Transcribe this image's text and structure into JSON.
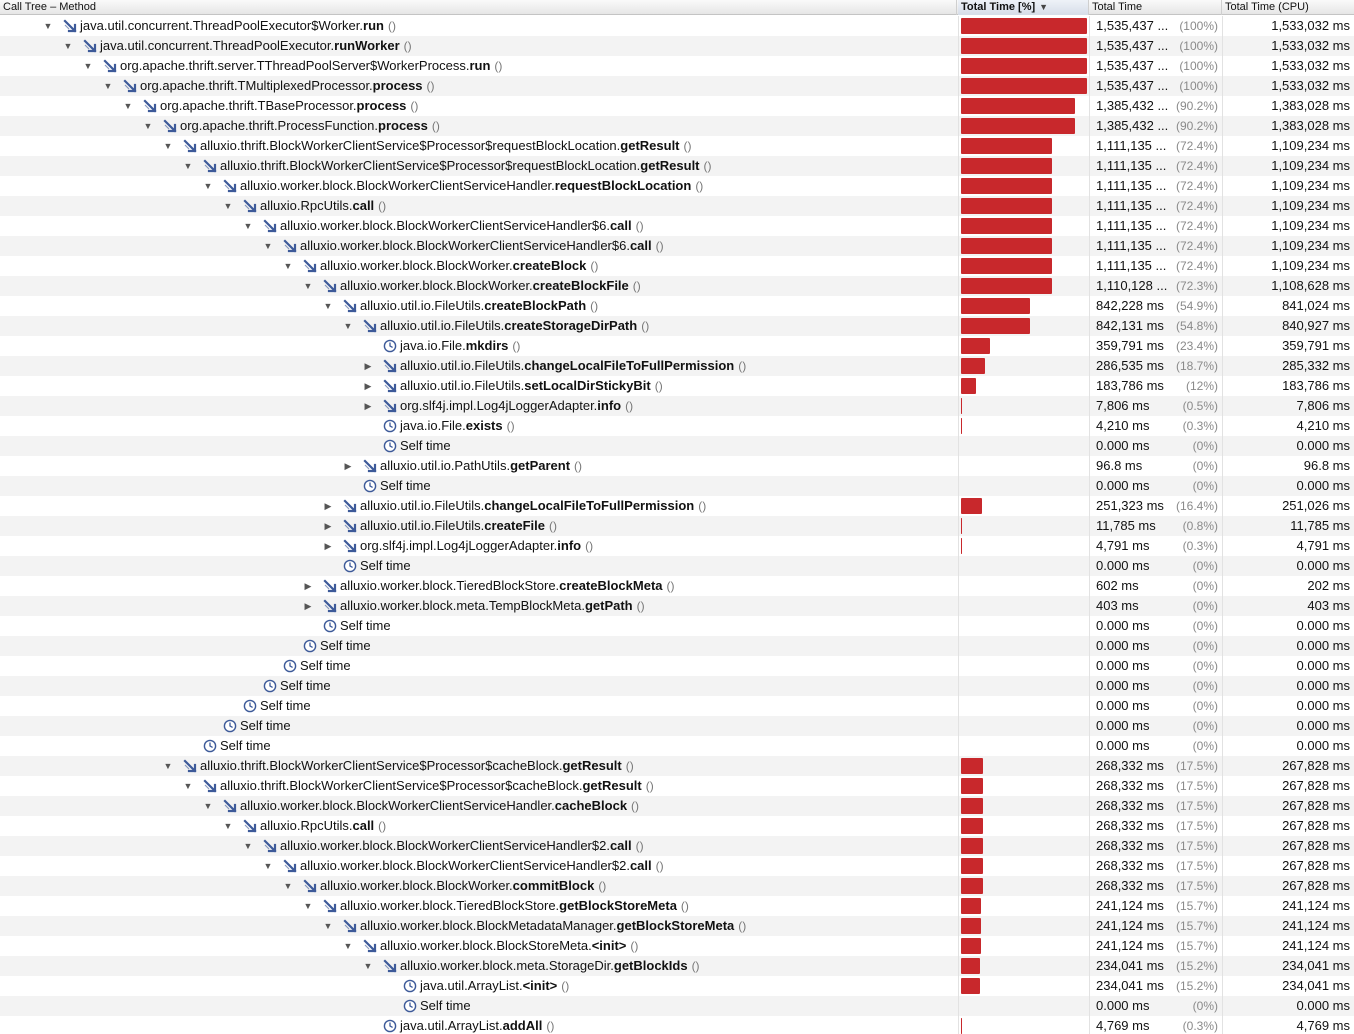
{
  "header": {
    "method": "Call Tree – Method",
    "total_pct": "Total Time [%]",
    "total": "Total Time",
    "cpu": "Total Time (CPU)"
  },
  "rows": [
    {
      "depth": 0,
      "disc": "open",
      "icon": "method",
      "pkg": "java.util.concurrent.ThreadPoolExecutor$Worker.",
      "meth": "run",
      "pct": 100,
      "total": "1,535,437 ...",
      "pcttext": "(100%)",
      "cpu": "1,533,032 ms"
    },
    {
      "depth": 1,
      "disc": "open",
      "icon": "method",
      "pkg": "java.util.concurrent.ThreadPoolExecutor.",
      "meth": "runWorker",
      "pct": 100,
      "total": "1,535,437 ...",
      "pcttext": "(100%)",
      "cpu": "1,533,032 ms"
    },
    {
      "depth": 2,
      "disc": "open",
      "icon": "method",
      "pkg": "org.apache.thrift.server.TThreadPoolServer$WorkerProcess.",
      "meth": "run",
      "pct": 100,
      "total": "1,535,437 ...",
      "pcttext": "(100%)",
      "cpu": "1,533,032 ms"
    },
    {
      "depth": 3,
      "disc": "open",
      "icon": "method",
      "pkg": "org.apache.thrift.TMultiplexedProcessor.",
      "meth": "process",
      "pct": 100,
      "total": "1,535,437 ...",
      "pcttext": "(100%)",
      "cpu": "1,533,032 ms"
    },
    {
      "depth": 4,
      "disc": "open",
      "icon": "method",
      "pkg": "org.apache.thrift.TBaseProcessor.",
      "meth": "process",
      "pct": 90.2,
      "total": "1,385,432 ...",
      "pcttext": "(90.2%)",
      "cpu": "1,383,028 ms"
    },
    {
      "depth": 5,
      "disc": "open",
      "icon": "method",
      "pkg": "org.apache.thrift.ProcessFunction.",
      "meth": "process",
      "pct": 90.2,
      "total": "1,385,432 ...",
      "pcttext": "(90.2%)",
      "cpu": "1,383,028 ms"
    },
    {
      "depth": 6,
      "disc": "open",
      "icon": "method",
      "pkg": "alluxio.thrift.BlockWorkerClientService$Processor$requestBlockLocation.",
      "meth": "getResult",
      "pct": 72.4,
      "total": "1,111,135 ...",
      "pcttext": "(72.4%)",
      "cpu": "1,109,234 ms"
    },
    {
      "depth": 7,
      "disc": "open",
      "icon": "method",
      "pkg": "alluxio.thrift.BlockWorkerClientService$Processor$requestBlockLocation.",
      "meth": "getResult",
      "pct": 72.4,
      "total": "1,111,135 ...",
      "pcttext": "(72.4%)",
      "cpu": "1,109,234 ms"
    },
    {
      "depth": 8,
      "disc": "open",
      "icon": "method",
      "pkg": "alluxio.worker.block.BlockWorkerClientServiceHandler.",
      "meth": "requestBlockLocation",
      "pct": 72.4,
      "total": "1,111,135 ...",
      "pcttext": "(72.4%)",
      "cpu": "1,109,234 ms"
    },
    {
      "depth": 9,
      "disc": "open",
      "icon": "method",
      "pkg": "alluxio.RpcUtils.",
      "meth": "call",
      "pct": 72.4,
      "total": "1,111,135 ...",
      "pcttext": "(72.4%)",
      "cpu": "1,109,234 ms"
    },
    {
      "depth": 10,
      "disc": "open",
      "icon": "method",
      "pkg": "alluxio.worker.block.BlockWorkerClientServiceHandler$6.",
      "meth": "call",
      "pct": 72.4,
      "total": "1,111,135 ...",
      "pcttext": "(72.4%)",
      "cpu": "1,109,234 ms"
    },
    {
      "depth": 11,
      "disc": "open",
      "icon": "method",
      "pkg": "alluxio.worker.block.BlockWorkerClientServiceHandler$6.",
      "meth": "call",
      "pct": 72.4,
      "total": "1,111,135 ...",
      "pcttext": "(72.4%)",
      "cpu": "1,109,234 ms"
    },
    {
      "depth": 12,
      "disc": "open",
      "icon": "method",
      "pkg": "alluxio.worker.block.BlockWorker.",
      "meth": "createBlock",
      "pct": 72.4,
      "total": "1,111,135 ...",
      "pcttext": "(72.4%)",
      "cpu": "1,109,234 ms"
    },
    {
      "depth": 13,
      "disc": "open",
      "icon": "method",
      "pkg": "alluxio.worker.block.BlockWorker.",
      "meth": "createBlockFile",
      "pct": 72.3,
      "total": "1,110,128 ...",
      "pcttext": "(72.3%)",
      "cpu": "1,108,628 ms"
    },
    {
      "depth": 14,
      "disc": "open",
      "icon": "method",
      "pkg": "alluxio.util.io.FileUtils.",
      "meth": "createBlockPath",
      "pct": 54.9,
      "total": "842,228 ms",
      "pcttext": "(54.9%)",
      "cpu": "841,024 ms"
    },
    {
      "depth": 15,
      "disc": "open",
      "icon": "method",
      "pkg": "alluxio.util.io.FileUtils.",
      "meth": "createStorageDirPath",
      "pct": 54.8,
      "total": "842,131 ms",
      "pcttext": "(54.8%)",
      "cpu": "840,927 ms"
    },
    {
      "depth": 16,
      "disc": "none",
      "icon": "clock",
      "pkg": "java.io.File.",
      "meth": "mkdirs",
      "pct": 23.4,
      "total": "359,791 ms",
      "pcttext": "(23.4%)",
      "cpu": "359,791 ms"
    },
    {
      "depth": 16,
      "disc": "closed",
      "icon": "method",
      "pkg": "alluxio.util.io.FileUtils.",
      "meth": "changeLocalFileToFullPermission",
      "pct": 18.7,
      "total": "286,535 ms",
      "pcttext": "(18.7%)",
      "cpu": "285,332 ms"
    },
    {
      "depth": 16,
      "disc": "closed",
      "icon": "method",
      "pkg": "alluxio.util.io.FileUtils.",
      "meth": "setLocalDirStickyBit",
      "pct": 12,
      "total": "183,786 ms",
      "pcttext": "(12%)",
      "cpu": "183,786 ms"
    },
    {
      "depth": 16,
      "disc": "closed",
      "icon": "method",
      "pkg": "org.slf4j.impl.Log4jLoggerAdapter.",
      "meth": "info",
      "pct": 0.5,
      "total": "7,806 ms",
      "pcttext": "(0.5%)",
      "cpu": "7,806 ms"
    },
    {
      "depth": 16,
      "disc": "none",
      "icon": "clock",
      "pkg": "java.io.File.",
      "meth": "exists",
      "pct": 0.3,
      "total": "4,210 ms",
      "pcttext": "(0.3%)",
      "cpu": "4,210 ms"
    },
    {
      "depth": 16,
      "disc": "none",
      "icon": "clock",
      "pkg": "Self time",
      "meth": "",
      "pct": 0,
      "total": "0.000 ms",
      "pcttext": "(0%)",
      "cpu": "0.000 ms"
    },
    {
      "depth": 15,
      "disc": "closed",
      "icon": "method",
      "pkg": "alluxio.util.io.PathUtils.",
      "meth": "getParent",
      "pct": 0,
      "total": "96.8 ms",
      "pcttext": "(0%)",
      "cpu": "96.8 ms"
    },
    {
      "depth": 15,
      "disc": "none",
      "icon": "clock",
      "pkg": "Self time",
      "meth": "",
      "pct": 0,
      "total": "0.000 ms",
      "pcttext": "(0%)",
      "cpu": "0.000 ms"
    },
    {
      "depth": 14,
      "disc": "closed",
      "icon": "method",
      "pkg": "alluxio.util.io.FileUtils.",
      "meth": "changeLocalFileToFullPermission",
      "pct": 16.4,
      "total": "251,323 ms",
      "pcttext": "(16.4%)",
      "cpu": "251,026 ms"
    },
    {
      "depth": 14,
      "disc": "closed",
      "icon": "method",
      "pkg": "alluxio.util.io.FileUtils.",
      "meth": "createFile",
      "pct": 0.8,
      "total": "11,785 ms",
      "pcttext": "(0.8%)",
      "cpu": "11,785 ms"
    },
    {
      "depth": 14,
      "disc": "closed",
      "icon": "method",
      "pkg": "org.slf4j.impl.Log4jLoggerAdapter.",
      "meth": "info",
      "pct": 0.3,
      "total": "4,791 ms",
      "pcttext": "(0.3%)",
      "cpu": "4,791 ms"
    },
    {
      "depth": 14,
      "disc": "none",
      "icon": "clock",
      "pkg": "Self time",
      "meth": "",
      "pct": 0,
      "total": "0.000 ms",
      "pcttext": "(0%)",
      "cpu": "0.000 ms"
    },
    {
      "depth": 13,
      "disc": "closed",
      "icon": "method",
      "pkg": "alluxio.worker.block.TieredBlockStore.",
      "meth": "createBlockMeta",
      "pct": 0,
      "total": "602 ms",
      "pcttext": "(0%)",
      "cpu": "202 ms"
    },
    {
      "depth": 13,
      "disc": "closed",
      "icon": "method",
      "pkg": "alluxio.worker.block.meta.TempBlockMeta.",
      "meth": "getPath",
      "pct": 0,
      "total": "403 ms",
      "pcttext": "(0%)",
      "cpu": "403 ms"
    },
    {
      "depth": 13,
      "disc": "none",
      "icon": "clock",
      "pkg": "Self time",
      "meth": "",
      "pct": 0,
      "total": "0.000 ms",
      "pcttext": "(0%)",
      "cpu": "0.000 ms"
    },
    {
      "depth": 12,
      "disc": "none",
      "icon": "clock",
      "pkg": "Self time",
      "meth": "",
      "pct": 0,
      "total": "0.000 ms",
      "pcttext": "(0%)",
      "cpu": "0.000 ms"
    },
    {
      "depth": 11,
      "disc": "none",
      "icon": "clock",
      "pkg": "Self time",
      "meth": "",
      "pct": 0,
      "total": "0.000 ms",
      "pcttext": "(0%)",
      "cpu": "0.000 ms"
    },
    {
      "depth": 10,
      "disc": "none",
      "icon": "clock",
      "pkg": "Self time",
      "meth": "",
      "pct": 0,
      "total": "0.000 ms",
      "pcttext": "(0%)",
      "cpu": "0.000 ms"
    },
    {
      "depth": 9,
      "disc": "none",
      "icon": "clock",
      "pkg": "Self time",
      "meth": "",
      "pct": 0,
      "total": "0.000 ms",
      "pcttext": "(0%)",
      "cpu": "0.000 ms"
    },
    {
      "depth": 8,
      "disc": "none",
      "icon": "clock",
      "pkg": "Self time",
      "meth": "",
      "pct": 0,
      "total": "0.000 ms",
      "pcttext": "(0%)",
      "cpu": "0.000 ms"
    },
    {
      "depth": 7,
      "disc": "none",
      "icon": "clock",
      "pkg": "Self time",
      "meth": "",
      "pct": 0,
      "total": "0.000 ms",
      "pcttext": "(0%)",
      "cpu": "0.000 ms"
    },
    {
      "depth": 6,
      "disc": "open",
      "icon": "method",
      "pkg": "alluxio.thrift.BlockWorkerClientService$Processor$cacheBlock.",
      "meth": "getResult",
      "pct": 17.5,
      "total": "268,332 ms",
      "pcttext": "(17.5%)",
      "cpu": "267,828 ms"
    },
    {
      "depth": 7,
      "disc": "open",
      "icon": "method",
      "pkg": "alluxio.thrift.BlockWorkerClientService$Processor$cacheBlock.",
      "meth": "getResult",
      "pct": 17.5,
      "total": "268,332 ms",
      "pcttext": "(17.5%)",
      "cpu": "267,828 ms"
    },
    {
      "depth": 8,
      "disc": "open",
      "icon": "method",
      "pkg": "alluxio.worker.block.BlockWorkerClientServiceHandler.",
      "meth": "cacheBlock",
      "pct": 17.5,
      "total": "268,332 ms",
      "pcttext": "(17.5%)",
      "cpu": "267,828 ms"
    },
    {
      "depth": 9,
      "disc": "open",
      "icon": "method",
      "pkg": "alluxio.RpcUtils.",
      "meth": "call",
      "pct": 17.5,
      "total": "268,332 ms",
      "pcttext": "(17.5%)",
      "cpu": "267,828 ms"
    },
    {
      "depth": 10,
      "disc": "open",
      "icon": "method",
      "pkg": "alluxio.worker.block.BlockWorkerClientServiceHandler$2.",
      "meth": "call",
      "pct": 17.5,
      "total": "268,332 ms",
      "pcttext": "(17.5%)",
      "cpu": "267,828 ms"
    },
    {
      "depth": 11,
      "disc": "open",
      "icon": "method",
      "pkg": "alluxio.worker.block.BlockWorkerClientServiceHandler$2.",
      "meth": "call",
      "pct": 17.5,
      "total": "268,332 ms",
      "pcttext": "(17.5%)",
      "cpu": "267,828 ms"
    },
    {
      "depth": 12,
      "disc": "open",
      "icon": "method",
      "pkg": "alluxio.worker.block.BlockWorker.",
      "meth": "commitBlock",
      "pct": 17.5,
      "total": "268,332 ms",
      "pcttext": "(17.5%)",
      "cpu": "267,828 ms"
    },
    {
      "depth": 13,
      "disc": "open",
      "icon": "method",
      "pkg": "alluxio.worker.block.TieredBlockStore.",
      "meth": "getBlockStoreMeta",
      "pct": 15.7,
      "total": "241,124 ms",
      "pcttext": "(15.7%)",
      "cpu": "241,124 ms"
    },
    {
      "depth": 14,
      "disc": "open",
      "icon": "method",
      "pkg": "alluxio.worker.block.BlockMetadataManager.",
      "meth": "getBlockStoreMeta",
      "pct": 15.7,
      "total": "241,124 ms",
      "pcttext": "(15.7%)",
      "cpu": "241,124 ms"
    },
    {
      "depth": 15,
      "disc": "open",
      "icon": "method",
      "pkg": "alluxio.worker.block.BlockStoreMeta.",
      "meth": "<init>",
      "pct": 15.7,
      "total": "241,124 ms",
      "pcttext": "(15.7%)",
      "cpu": "241,124 ms"
    },
    {
      "depth": 16,
      "disc": "open",
      "icon": "method",
      "pkg": "alluxio.worker.block.meta.StorageDir.",
      "meth": "getBlockIds",
      "pct": 15.2,
      "total": "234,041 ms",
      "pcttext": "(15.2%)",
      "cpu": "234,041 ms"
    },
    {
      "depth": 17,
      "disc": "none",
      "icon": "clock",
      "pkg": "java.util.ArrayList.",
      "meth": "<init>",
      "pct": 15.2,
      "total": "234,041 ms",
      "pcttext": "(15.2%)",
      "cpu": "234,041 ms"
    },
    {
      "depth": 17,
      "disc": "none",
      "icon": "clock",
      "pkg": "Self time",
      "meth": "",
      "pct": 0,
      "total": "0.000 ms",
      "pcttext": "(0%)",
      "cpu": "0.000 ms"
    },
    {
      "depth": 16,
      "disc": "none",
      "icon": "clock",
      "pkg": "java.util.ArrayList.",
      "meth": "addAll",
      "pct": 0.3,
      "total": "4,769 ms",
      "pcttext": "(0.3%)",
      "cpu": "4,769 ms"
    }
  ],
  "colors": {
    "bar": "#c8282c",
    "icon": "#3d5a99"
  },
  "icons": {
    "method": "method-arrow-icon",
    "clock": "clock-icon",
    "open": "disclosure-open-icon",
    "closed": "disclosure-closed-icon"
  }
}
